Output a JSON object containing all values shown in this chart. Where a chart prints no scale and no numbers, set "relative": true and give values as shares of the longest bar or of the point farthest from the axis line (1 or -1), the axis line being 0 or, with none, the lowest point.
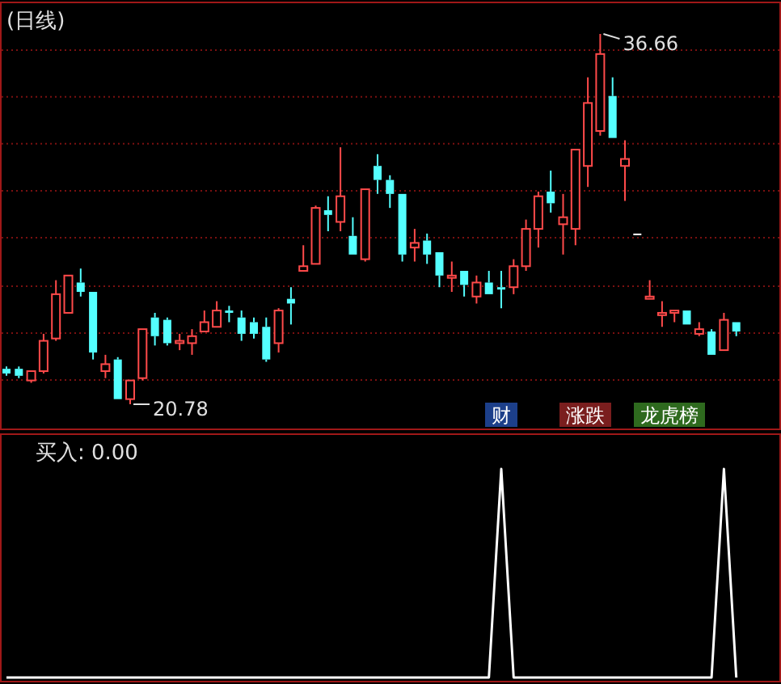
{
  "chart_data": [
    {
      "type": "candlestick",
      "title": "(日线)",
      "grid": "y",
      "yticks": [
        {
          "value": 21.82,
          "label": null
        },
        {
          "value": 23.83,
          "label": null
        },
        {
          "value": 25.84,
          "label": null
        },
        {
          "value": 27.92,
          "label": null
        },
        {
          "value": 29.93,
          "label": null
        },
        {
          "value": 31.95,
          "label": null
        },
        {
          "value": 33.96,
          "label": null
        },
        {
          "value": 35.97,
          "label": null
        }
      ],
      "categories": [
        null,
        null,
        null,
        null,
        null,
        null,
        null,
        null,
        null,
        null,
        null,
        null,
        null,
        null,
        null,
        null,
        null,
        null,
        null,
        null,
        null,
        null,
        null,
        null,
        null,
        null,
        null,
        null,
        null,
        null,
        null,
        null,
        null,
        null,
        null,
        null,
        null,
        null,
        null,
        null,
        null,
        null,
        null,
        null,
        null,
        null,
        null,
        null,
        null,
        null,
        null,
        null,
        null,
        null,
        null,
        null,
        null,
        null,
        null,
        null
      ],
      "ohlc": [
        [
          22.3,
          22.4,
          22.0,
          22.1
        ],
        [
          22.3,
          22.4,
          21.9,
          22.0
        ],
        [
          21.8,
          22.2,
          21.7,
          22.2
        ],
        [
          22.2,
          23.8,
          22.1,
          23.5
        ],
        [
          23.6,
          26.1,
          23.5,
          25.5
        ],
        [
          24.7,
          26.3,
          24.7,
          26.3
        ],
        [
          26.0,
          26.6,
          25.4,
          25.6
        ],
        [
          25.6,
          25.6,
          22.7,
          23.0
        ],
        [
          22.2,
          22.9,
          21.9,
          22.5
        ],
        [
          22.7,
          22.8,
          21.0,
          21.0
        ],
        [
          21.0,
          21.8,
          20.78,
          21.8
        ],
        [
          21.9,
          24.0,
          21.8,
          24.0
        ],
        [
          24.5,
          24.7,
          23.3,
          23.7
        ],
        [
          24.4,
          24.5,
          23.3,
          23.4
        ],
        [
          23.4,
          23.8,
          23.1,
          23.5
        ],
        [
          23.4,
          24.0,
          22.9,
          23.7
        ],
        [
          23.9,
          24.8,
          23.9,
          24.3
        ],
        [
          24.1,
          25.2,
          24.1,
          24.8
        ],
        [
          24.8,
          25.0,
          24.3,
          24.7
        ],
        [
          24.5,
          24.8,
          23.5,
          23.8
        ],
        [
          24.3,
          24.5,
          23.6,
          23.8
        ],
        [
          24.1,
          24.5,
          22.6,
          22.7
        ],
        [
          23.4,
          24.9,
          23.0,
          24.8
        ],
        [
          25.3,
          25.8,
          24.2,
          25.1
        ],
        [
          26.5,
          27.6,
          26.5,
          26.7
        ],
        [
          26.8,
          29.3,
          26.8,
          29.2
        ],
        [
          29.1,
          29.7,
          28.2,
          28.9
        ],
        [
          28.6,
          31.8,
          28.2,
          29.7
        ],
        [
          28.0,
          28.8,
          27.2,
          27.2
        ],
        [
          27.0,
          30.0,
          26.9,
          30.0
        ],
        [
          31.0,
          31.5,
          29.8,
          30.4
        ],
        [
          30.4,
          30.6,
          29.2,
          29.8
        ],
        [
          29.8,
          29.8,
          26.9,
          27.2
        ],
        [
          27.5,
          28.3,
          26.9,
          27.7
        ],
        [
          27.8,
          28.1,
          26.8,
          27.2
        ],
        [
          27.3,
          27.3,
          25.8,
          26.3
        ],
        [
          26.2,
          26.9,
          25.6,
          26.3
        ],
        [
          26.5,
          26.5,
          25.4,
          25.9
        ],
        [
          25.4,
          26.3,
          25.1,
          26.0
        ],
        [
          26.0,
          26.5,
          25.5,
          25.5
        ],
        [
          25.8,
          26.5,
          24.9,
          25.7
        ],
        [
          25.8,
          27.0,
          25.5,
          26.7
        ],
        [
          26.7,
          28.7,
          26.5,
          28.3
        ],
        [
          28.3,
          29.9,
          27.5,
          29.7
        ],
        [
          29.9,
          30.8,
          29.0,
          29.4
        ],
        [
          28.5,
          29.8,
          27.2,
          28.8
        ],
        [
          28.3,
          31.7,
          27.6,
          31.7
        ],
        [
          31.0,
          34.8,
          30.1,
          33.7
        ],
        [
          32.5,
          36.66,
          32.3,
          35.8
        ],
        [
          34.0,
          34.8,
          32.2,
          32.2
        ],
        [
          31.0,
          32.1,
          29.5,
          31.3
        ],
        [
          28.1,
          28.1,
          28.1,
          28.1
        ],
        [
          25.3,
          26.1,
          25.3,
          25.4
        ],
        [
          24.6,
          25.2,
          24.1,
          24.7
        ],
        [
          24.7,
          24.8,
          24.3,
          24.8
        ],
        [
          24.8,
          24.8,
          24.2,
          24.2
        ],
        [
          23.8,
          24.3,
          23.7,
          24.0
        ],
        [
          23.9,
          24.0,
          22.9,
          22.9
        ],
        [
          23.1,
          24.7,
          23.1,
          24.4
        ],
        [
          24.3,
          24.3,
          23.7,
          23.9
        ]
      ],
      "annotations": [
        "36.66",
        "20.78",
        "财",
        "涨跌",
        "龙虎榜"
      ]
    },
    {
      "type": "line",
      "title": "买入: 0.00",
      "relative": true,
      "color": "#ffffff",
      "categories": [
        null,
        null,
        null,
        null,
        null,
        null,
        null,
        null,
        null,
        null,
        null,
        null,
        null,
        null,
        null,
        null,
        null,
        null,
        null,
        null,
        null,
        null,
        null,
        null,
        null,
        null,
        null,
        null,
        null,
        null,
        null,
        null,
        null,
        null,
        null,
        null,
        null,
        null,
        null,
        null,
        null,
        null,
        null,
        null,
        null,
        null,
        null,
        null,
        null,
        null,
        null,
        null,
        null,
        null,
        null,
        null,
        null,
        null,
        null,
        null
      ],
      "values": [
        0,
        0,
        0,
        0,
        0,
        0,
        0,
        0,
        0,
        0,
        0,
        0,
        0,
        0,
        0,
        0,
        0,
        0,
        0,
        0,
        0,
        0,
        0,
        0,
        0,
        0,
        0,
        0,
        0,
        0,
        0,
        0,
        0,
        0,
        0,
        0,
        0,
        0,
        0,
        0,
        1,
        0,
        0,
        0,
        0,
        0,
        0,
        0,
        0,
        0,
        0,
        0,
        0,
        0,
        0,
        0,
        0,
        0,
        1,
        0
      ]
    }
  ]
}
